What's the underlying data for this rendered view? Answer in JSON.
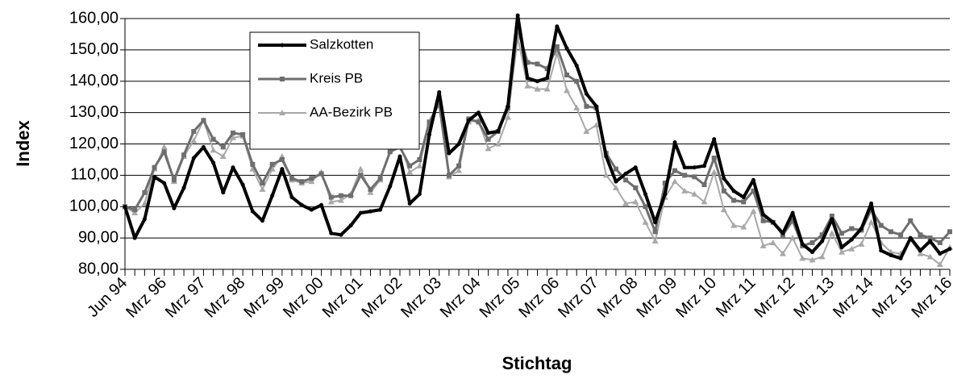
{
  "chart_data": {
    "type": "line",
    "y_label": "Index",
    "x_label": "Stichtag",
    "categories": [
      "Jun 94",
      null,
      null,
      null,
      "Mrz 96",
      null,
      null,
      null,
      "Mrz 97",
      null,
      null,
      null,
      "Mrz 98",
      null,
      null,
      null,
      "Mrz 99",
      null,
      null,
      null,
      "Mrz 00",
      null,
      null,
      null,
      "Mrz 01",
      null,
      null,
      null,
      "Mrz 02",
      null,
      null,
      null,
      "Mrz 03",
      null,
      null,
      null,
      "Mrz 04",
      null,
      null,
      null,
      "Mrz 05",
      null,
      null,
      null,
      "Mrz 06",
      null,
      null,
      null,
      "Mrz 07",
      null,
      null,
      null,
      "Mrz 08",
      null,
      null,
      null,
      "Mrz 09",
      null,
      null,
      null,
      "Mrz 10",
      null,
      null,
      null,
      "Mrz 11",
      null,
      null,
      null,
      "Mrz 12",
      null,
      null,
      null,
      "Mrz 13",
      null,
      null,
      null,
      "Mrz 14",
      null,
      null,
      null,
      "Mrz 15",
      null,
      null,
      null,
      "Mrz 16"
    ],
    "series": [
      {
        "name": "Salzkotten",
        "color": "#000000",
        "marker": "dot",
        "values": [
          100,
          90,
          96,
          109.5,
          107.5,
          99.5,
          106,
          115.5,
          119,
          114,
          104.5,
          112.5,
          107,
          98.5,
          95.5,
          103.5,
          112,
          103,
          100.5,
          99,
          100.5,
          91.5,
          91,
          94,
          98,
          98.5,
          99,
          106.5,
          116,
          101,
          104,
          123,
          136.5,
          117,
          120,
          127.5,
          130,
          123.5,
          124,
          132,
          161,
          141,
          140,
          141,
          157.5,
          150.5,
          145,
          136,
          132,
          116,
          108,
          110.5,
          112.5,
          104,
          95,
          104,
          120.5,
          112.5,
          112.5,
          113,
          121.5,
          109,
          105,
          103,
          108.5,
          97.5,
          95,
          91.5,
          98,
          88,
          85.5,
          89,
          96,
          87,
          89.5,
          93,
          101,
          86,
          84.5,
          83.5,
          90,
          86,
          89,
          85,
          86.5
        ]
      },
      {
        "name": "Kreis PB",
        "color": "#6e6e6e",
        "marker": "square",
        "values": [
          100,
          99,
          104.5,
          112.5,
          117.5,
          108.5,
          116.5,
          124,
          127.5,
          121.5,
          119,
          123.5,
          123,
          113.5,
          107.5,
          113.5,
          115,
          109,
          108,
          109,
          110.5,
          103,
          103.5,
          103.5,
          110,
          105.5,
          109,
          117.5,
          119,
          113,
          115,
          127,
          133,
          110,
          113,
          128,
          127,
          121.5,
          124,
          131.5,
          157,
          146,
          145.5,
          144,
          151,
          142,
          140,
          132,
          131.5,
          117,
          112,
          108.5,
          106,
          100,
          92,
          107.5,
          111.5,
          110,
          109.5,
          107,
          115.5,
          105,
          102,
          101.5,
          105,
          95.5,
          95,
          91,
          95.5,
          87.5,
          88.5,
          91,
          97,
          91.5,
          93,
          92.5,
          99,
          94,
          92,
          91,
          95.5,
          91,
          90,
          88.5,
          92
        ]
      },
      {
        "name": "AA-Bezirk PB",
        "color": "#a8a8a8",
        "marker": "triangle",
        "values": [
          100,
          98,
          101,
          112,
          119,
          108,
          116,
          121,
          127.5,
          118,
          116,
          122,
          122.5,
          112,
          105.5,
          112,
          116,
          108.5,
          107.5,
          108,
          111,
          101.5,
          102,
          104,
          112,
          104.5,
          108.5,
          118,
          120,
          111,
          113,
          126.5,
          134,
          109.5,
          111.5,
          127,
          127.5,
          118.5,
          120,
          128.5,
          154,
          138.5,
          137.5,
          137.5,
          149,
          137,
          131.5,
          124,
          126,
          110,
          106,
          101,
          101.5,
          95,
          89,
          103,
          108,
          105,
          104,
          101.5,
          111,
          99,
          94,
          93.5,
          98.5,
          87.5,
          88.5,
          85,
          90,
          83.5,
          83,
          84,
          91.5,
          85.5,
          86.5,
          88,
          95,
          88.5,
          85.5,
          85,
          89.5,
          85,
          84,
          81.5,
          87
        ]
      }
    ],
    "ylim": [
      80,
      160
    ],
    "yticks": [
      {
        "value": 80,
        "label": "80,00"
      },
      {
        "value": 90,
        "label": "90,00"
      },
      {
        "value": 100,
        "label": "100,00"
      },
      {
        "value": 110,
        "label": "110,00"
      },
      {
        "value": 120,
        "label": "120,00"
      },
      {
        "value": 130,
        "label": "130,00"
      },
      {
        "value": 140,
        "label": "140,00"
      },
      {
        "value": 150,
        "label": "150,00"
      },
      {
        "value": 160,
        "label": "160,00"
      }
    ],
    "grid": true,
    "legend": "upper-left"
  }
}
